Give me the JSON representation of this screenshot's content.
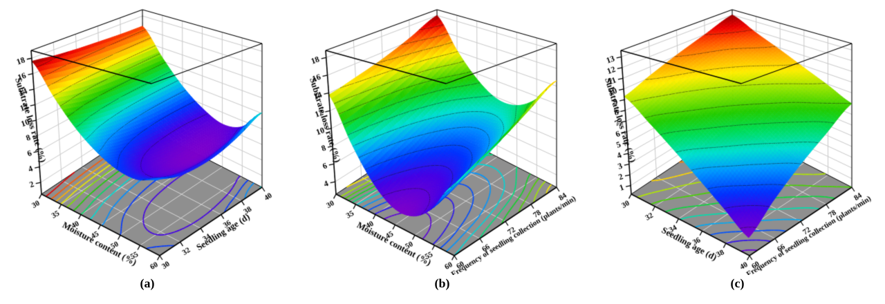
{
  "style": {
    "background": "#ffffff",
    "wall_color": "#ffffff",
    "wall_grid_color": "#c9c9c9",
    "floor_color": "#8f8f8f",
    "floor_grid_color": "#d8d8d8",
    "frame_color": "#000000",
    "text_color": "#000000",
    "surface_contour_color": "rgba(20,20,20,0.55)",
    "colormap": [
      [
        0.0,
        "#7c00cc"
      ],
      [
        0.1,
        "#4400e6"
      ],
      [
        0.18,
        "#0033ff"
      ],
      [
        0.28,
        "#0099ff"
      ],
      [
        0.36,
        "#00e0d0"
      ],
      [
        0.45,
        "#00dd55"
      ],
      [
        0.53,
        "#22cc00"
      ],
      [
        0.63,
        "#99e600"
      ],
      [
        0.71,
        "#ffee00"
      ],
      [
        0.79,
        "#ffaa00"
      ],
      [
        0.87,
        "#ff5500"
      ],
      [
        0.94,
        "#ee0000"
      ],
      [
        1.0,
        "#990000"
      ]
    ]
  },
  "chart_data": [
    {
      "type": "surface3d",
      "caption": "(a)",
      "xlabel": "Moisture content (%)",
      "ylabel": "Seedling age (d)",
      "zlabel": "Substrate loss rate (%)",
      "x_range": [
        30,
        60
      ],
      "y_range": [
        30,
        40
      ],
      "z_axis_range": [
        0.5,
        19.0
      ],
      "x_ticks": [
        30,
        35,
        40,
        45,
        50,
        55,
        60
      ],
      "y_ticks": [
        30,
        32,
        34,
        36,
        38,
        40
      ],
      "z_ticks": [
        2,
        4,
        6,
        8,
        10,
        12,
        14,
        16,
        18
      ],
      "z_grid": [
        [
          17.6,
          13.9,
          11.0,
          9.1,
          8.0,
          7.8,
          8.6
        ],
        [
          17.2,
          13.3,
          10.3,
          8.3,
          7.1,
          6.8,
          7.8
        ],
        [
          16.9,
          12.9,
          9.8,
          7.7,
          6.4,
          6.2,
          7.6
        ],
        [
          16.7,
          12.7,
          9.5,
          7.4,
          6.1,
          6.0,
          7.9
        ],
        [
          16.5,
          12.6,
          9.4,
          7.3,
          6.1,
          6.3,
          8.8
        ],
        [
          16.4,
          12.5,
          9.4,
          7.4,
          6.4,
          7.2,
          10.1
        ]
      ],
      "contour_levels": [
        7,
        8,
        9,
        10,
        11,
        12,
        13,
        14,
        15,
        16,
        17
      ]
    },
    {
      "type": "surface3d",
      "caption": "(b)",
      "xlabel": "Moisture content (%)",
      "ylabel": "Frequency of seedling collection (plants/min)",
      "zlabel": "Substrate loss rate (%)",
      "x_range": [
        30,
        60
      ],
      "y_range": [
        60,
        84
      ],
      "z_axis_range": [
        2.6,
        18.8
      ],
      "x_ticks": [
        30,
        35,
        40,
        45,
        50,
        55,
        60
      ],
      "y_ticks": [
        60,
        66,
        72,
        78,
        84
      ],
      "z_ticks": [
        4,
        6,
        8,
        10,
        12,
        14,
        16,
        18
      ],
      "z_grid": [
        [
          13.8,
          9.2,
          5.9,
          4.3,
          4.5,
          6.2,
          9.0
        ],
        [
          14.4,
          10.0,
          6.8,
          5.2,
          5.4,
          7.1,
          10.0
        ],
        [
          15.2,
          11.0,
          8.0,
          6.4,
          6.6,
          8.3,
          11.2
        ],
        [
          16.4,
          12.4,
          9.5,
          7.9,
          8.1,
          9.8,
          12.8
        ],
        [
          18.0,
          14.1,
          11.3,
          9.8,
          10.0,
          11.7,
          14.6
        ]
      ],
      "contour_levels": [
        5,
        6,
        7,
        8,
        9,
        10,
        11,
        12,
        13,
        14,
        15,
        16,
        17
      ]
    },
    {
      "type": "surface3d",
      "caption": "(c)",
      "xlabel": "Seedling age (d)",
      "ylabel": "Frequency of seedling collection (plants/min)",
      "zlabel": "Substrate loss rate (%)",
      "x_range": [
        30,
        40
      ],
      "y_range": [
        60,
        84
      ],
      "z_axis_range": [
        0.2,
        13.6
      ],
      "x_ticks": [
        30,
        32,
        34,
        36,
        38,
        40
      ],
      "y_ticks": [
        60,
        66,
        72,
        78,
        84
      ],
      "z_ticks": [
        1,
        2,
        3,
        4,
        5,
        6,
        7,
        8,
        9,
        10,
        11,
        12,
        13
      ],
      "z_grid": [
        [
          9.3,
          7.7,
          6.1,
          4.5,
          3.0,
          1.6
        ],
        [
          10.2,
          8.7,
          7.3,
          5.9,
          4.5,
          3.3
        ],
        [
          11.1,
          9.7,
          8.4,
          7.2,
          6.0,
          4.9
        ],
        [
          12.0,
          10.7,
          9.6,
          8.5,
          7.4,
          6.4
        ],
        [
          13.0,
          11.8,
          10.8,
          9.8,
          8.9,
          8.0
        ]
      ],
      "contour_levels": [
        2,
        3,
        4,
        5,
        6,
        7,
        8,
        9,
        10,
        11,
        12
      ]
    }
  ]
}
